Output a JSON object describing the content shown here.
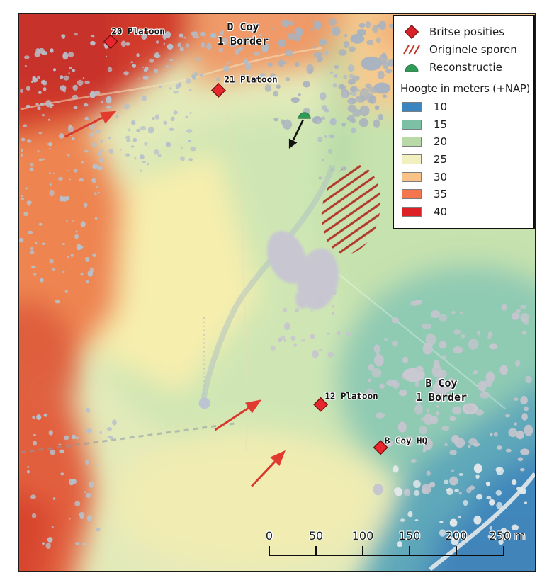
{
  "legend": {
    "symbol_items": [
      {
        "icon": "red-diamond-icon",
        "label": "Britse posities",
        "color": "#da2229"
      },
      {
        "icon": "red-hatch-icon",
        "label": "Originele sporen",
        "color": "#bf3a2d"
      },
      {
        "icon": "green-dome-icon",
        "label": "Reconstructie",
        "color": "#2f9c56"
      }
    ],
    "elevation_title": "Hoogte in meters (+NAP)",
    "elevation_classes": [
      {
        "value": "10",
        "color": "#3a84c0"
      },
      {
        "value": "15",
        "color": "#7cc0a6"
      },
      {
        "value": "20",
        "color": "#b9daa7"
      },
      {
        "value": "25",
        "color": "#f3f0bf"
      },
      {
        "value": "30",
        "color": "#f9c286"
      },
      {
        "value": "35",
        "color": "#f4764e"
      },
      {
        "value": "40",
        "color": "#dc2127"
      }
    ]
  },
  "annotations": {
    "unit_labels": [
      {
        "id": "d-coy",
        "line1": "D Coy",
        "line2": "1 Border"
      },
      {
        "id": "b-coy",
        "line1": "B Coy",
        "line2": "1 Border"
      }
    ],
    "position_markers": [
      {
        "id": "20-platoon",
        "label": "20 Platoon"
      },
      {
        "id": "21-platoon",
        "label": "21 Platoon"
      },
      {
        "id": "12-platoon",
        "label": "12 Platoon"
      },
      {
        "id": "b-coy-hq",
        "label": "B Coy HQ"
      }
    ],
    "marker_color": "#e8262d",
    "arrow_color": "#d8382e"
  },
  "scalebar": {
    "labels": [
      "0",
      "50",
      "100",
      "150",
      "200",
      "250 m"
    ]
  }
}
